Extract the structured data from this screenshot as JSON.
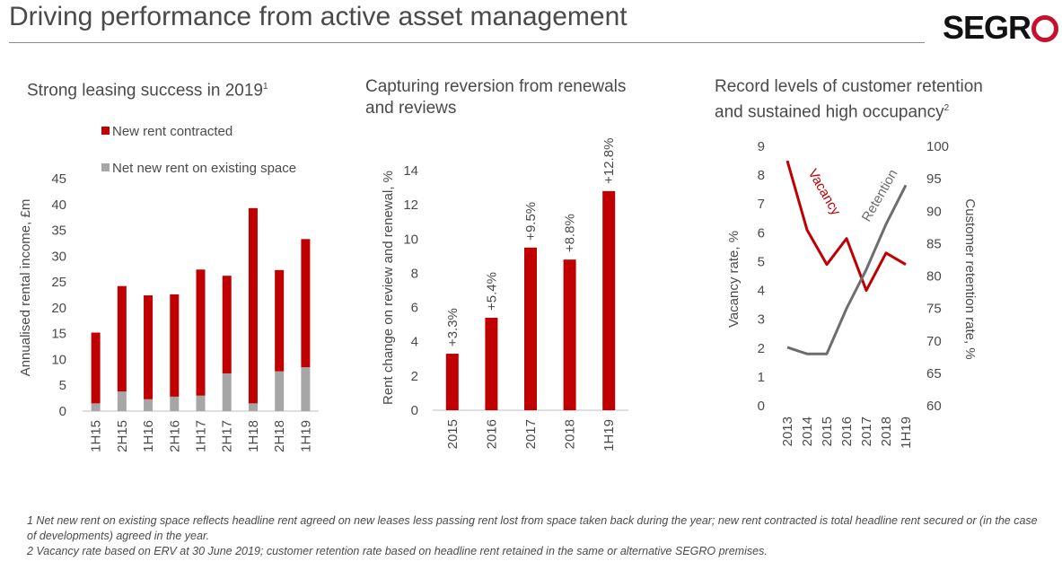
{
  "header": {
    "title": "Driving performance from active asset management",
    "logo_text": "SEGR",
    "logo_accent_color": "#c8102e"
  },
  "colors": {
    "red": "#c00000",
    "grey": "#a6a6a6",
    "line_grey": "#6d6d6d",
    "axis_text": "#4a4a4a"
  },
  "chart_data": [
    {
      "type": "bar",
      "stacked": true,
      "title": "Strong leasing success in 2019",
      "title_footnote_ref": "1",
      "ylabel": "Annualised rental income, £m",
      "ylim": [
        0,
        45
      ],
      "yticks": [
        0,
        5,
        10,
        15,
        20,
        25,
        30,
        35,
        40,
        45
      ],
      "categories": [
        "1H15",
        "2H15",
        "1H16",
        "2H16",
        "1H17",
        "2H17",
        "1H18",
        "2H18",
        "1H19"
      ],
      "series": [
        {
          "name": "Net new rent on existing space",
          "color": "#a6a6a6",
          "values": [
            1.5,
            3.8,
            2.3,
            2.8,
            3.0,
            7.3,
            1.5,
            7.7,
            8.5
          ]
        },
        {
          "name": "New rent contracted",
          "color": "#c00000",
          "values": [
            13.7,
            20.4,
            20.1,
            19.8,
            24.4,
            18.9,
            37.8,
            19.6,
            24.8
          ]
        }
      ],
      "legend": "top-left",
      "grid": false
    },
    {
      "type": "bar",
      "title": "Capturing reversion from renewals and reviews",
      "ylabel": "Rent change on review and renewal, %",
      "ylim": [
        0,
        14
      ],
      "yticks": [
        0,
        2,
        4,
        6,
        8,
        10,
        12,
        14
      ],
      "categories": [
        "2015",
        "2016",
        "2017",
        "2018",
        "1H19"
      ],
      "values": [
        3.3,
        5.4,
        9.5,
        8.8,
        12.8
      ],
      "data_labels": [
        "+3.3%",
        "+5.4%",
        "+9.5%",
        "+8.8%",
        "+12.8%"
      ],
      "grid": false
    },
    {
      "type": "line",
      "title": "Record levels of customer retention and sustained high occupancy",
      "title_footnote_ref": "2",
      "x": [
        "2013",
        "2014",
        "2015",
        "2016",
        "2017",
        "2018",
        "1H19"
      ],
      "ylabel": "Vacancy rate, %",
      "ylim": [
        0,
        9
      ],
      "yticks": [
        0,
        1,
        2,
        3,
        4,
        5,
        6,
        7,
        8,
        9
      ],
      "y2label": "Customer retention rate, %",
      "y2lim": [
        60,
        100
      ],
      "y2ticks": [
        60,
        65,
        70,
        75,
        80,
        85,
        90,
        95,
        100
      ],
      "series": [
        {
          "name": "Vacancy",
          "axis": "left",
          "color": "#c00000",
          "values": [
            8.5,
            6.1,
            4.9,
            5.8,
            4.0,
            5.3,
            4.9
          ]
        },
        {
          "name": "Retention",
          "axis": "right",
          "color": "#6d6d6d",
          "values": [
            69,
            68,
            68,
            75,
            81,
            88,
            94
          ]
        }
      ],
      "grid": false
    }
  ],
  "footnotes": [
    "1 Net new rent on existing space reflects headline rent agreed on new leases less passing rent lost from space taken back during the year; new rent contracted is total headline rent secured or (in the case of developments) agreed in the year.",
    "2 Vacancy rate based on ERV at 30 June 2019; customer retention rate based on headline rent retained in the same or alternative SEGRO premises."
  ]
}
